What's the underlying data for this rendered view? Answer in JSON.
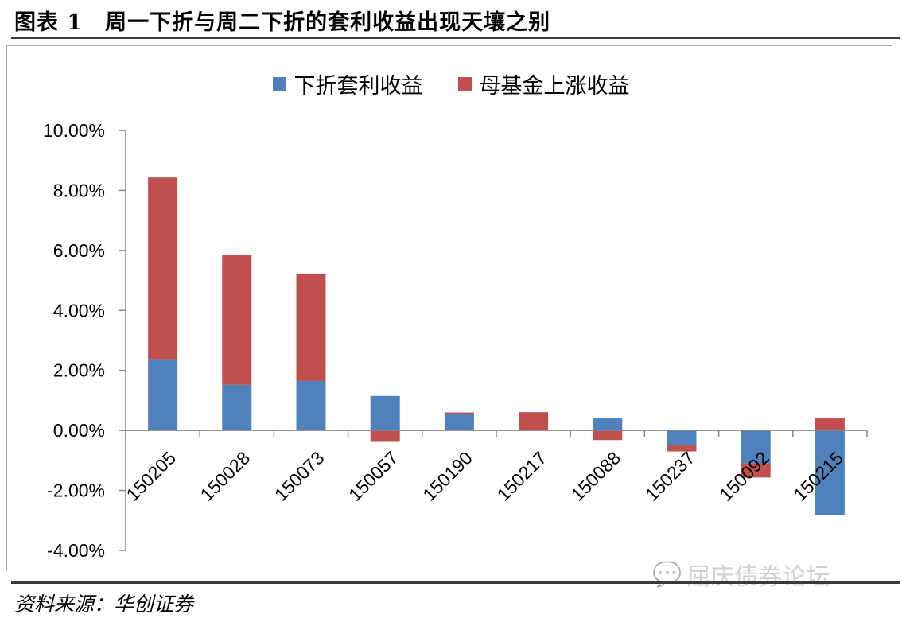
{
  "figure": {
    "title": "图表 1　周一下折与周二下折的套利收益出现天壤之别",
    "source": "资料来源：华创证券",
    "watermark": "屈庆债券论坛"
  },
  "colors": {
    "series_blue": "#4F81BD",
    "series_red": "#C0504D",
    "rule": "#3a3a3a",
    "frame": "#a6a6a6"
  },
  "chart_data": {
    "type": "bar",
    "stacked": true,
    "categories": [
      "150205",
      "150028",
      "150073",
      "150057",
      "150190",
      "150217",
      "150088",
      "150237",
      "150092",
      "150215"
    ],
    "series": [
      {
        "name": "下折套利收益",
        "color": "#4F81BD",
        "values": [
          2.38,
          1.52,
          1.65,
          1.15,
          0.55,
          0.03,
          0.4,
          -0.5,
          -1.1,
          -2.82
        ]
      },
      {
        "name": "母基金上涨收益",
        "color": "#C0504D",
        "values": [
          6.05,
          4.32,
          3.58,
          -0.38,
          0.05,
          0.58,
          -0.32,
          -0.2,
          -0.47,
          0.4
        ]
      }
    ],
    "ylim": [
      -4,
      10
    ],
    "yticks": [
      -4,
      -2,
      0,
      2,
      4,
      6,
      8,
      10
    ],
    "ytick_labels": [
      "-4.00%",
      "-2.00%",
      "0.00%",
      "2.00%",
      "4.00%",
      "6.00%",
      "8.00%",
      "10.00%"
    ],
    "legend_position": "top-center",
    "grid": false,
    "xlabel": "",
    "ylabel": ""
  }
}
